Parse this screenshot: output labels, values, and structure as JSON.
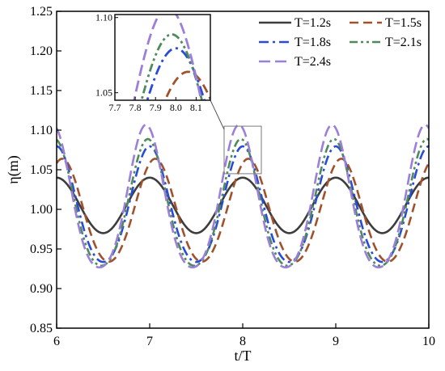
{
  "chart_data": {
    "type": "line",
    "xlabel": "t/T",
    "ylabel": "η(m)",
    "xlim": [
      6,
      10
    ],
    "ylim": [
      0.85,
      1.25
    ],
    "xticks": [
      "6",
      "7",
      "8",
      "9",
      "10"
    ],
    "yticks": [
      "0.85",
      "0.90",
      "0.95",
      "1.00",
      "1.05",
      "1.10",
      "1.15",
      "1.20",
      "1.25"
    ],
    "legend_position": "top-right",
    "series": [
      {
        "name": "T=1.2s",
        "color": "#3d3d3d",
        "dash": "solid",
        "mean": 1.005,
        "amplitude": 0.035,
        "crest_sharpness": 0.0,
        "phase": 0.0,
        "crest_values": [
          1.044,
          1.043,
          1.04,
          1.044,
          1.043
        ],
        "trough_values": [
          0.972,
          0.97,
          0.968,
          0.968
        ]
      },
      {
        "name": "T=1.5s",
        "color": "#a0522d",
        "dash": "dash",
        "mean": 0.995,
        "amplitude": 0.065,
        "crest_sharpness": 0.12,
        "phase": 0.06,
        "crest_values": [
          1.06,
          1.06,
          1.06,
          1.062,
          1.062
        ],
        "trough_values": [
          0.93,
          0.93,
          0.93,
          0.928
        ]
      },
      {
        "name": "T=1.8s",
        "color": "#2a4bd7",
        "dash": "dashdot",
        "mean": 1.0,
        "amplitude": 0.073,
        "crest_sharpness": 0.18,
        "phase": 0.0,
        "crest_values": [
          1.07,
          1.075,
          1.075,
          1.073,
          1.073
        ],
        "trough_values": [
          0.93,
          0.93,
          0.93,
          0.93
        ]
      },
      {
        "name": "T=2.1s",
        "color": "#4f8a5a",
        "dash": "dashdotdot",
        "mean": 1.0,
        "amplitude": 0.08,
        "crest_sharpness": 0.22,
        "phase": -0.02,
        "crest_values": [
          1.085,
          1.087,
          1.085,
          1.087,
          1.09
        ],
        "trough_values": [
          0.922,
          0.925,
          0.925,
          0.925
        ]
      },
      {
        "name": "T=2.4s",
        "color": "#9b7fd8",
        "dash": "longdash",
        "mean": 1.005,
        "amplitude": 0.09,
        "crest_sharpness": 0.26,
        "phase": -0.04,
        "crest_values": [
          1.095,
          1.098,
          1.098,
          1.1,
          1.1
        ],
        "trough_values": [
          0.925,
          0.925,
          0.925,
          0.925
        ]
      }
    ],
    "inset": {
      "xlim": [
        7.7,
        8.17
      ],
      "ylim": [
        1.045,
        1.102
      ],
      "xticks": [
        "7.7",
        "7.8",
        "7.9",
        "8.0",
        "8.1"
      ],
      "yticks": [
        "1.05",
        "1.10"
      ],
      "zoom_region": {
        "x": [
          7.8,
          8.2
        ],
        "y": [
          1.045,
          1.105
        ]
      }
    }
  }
}
